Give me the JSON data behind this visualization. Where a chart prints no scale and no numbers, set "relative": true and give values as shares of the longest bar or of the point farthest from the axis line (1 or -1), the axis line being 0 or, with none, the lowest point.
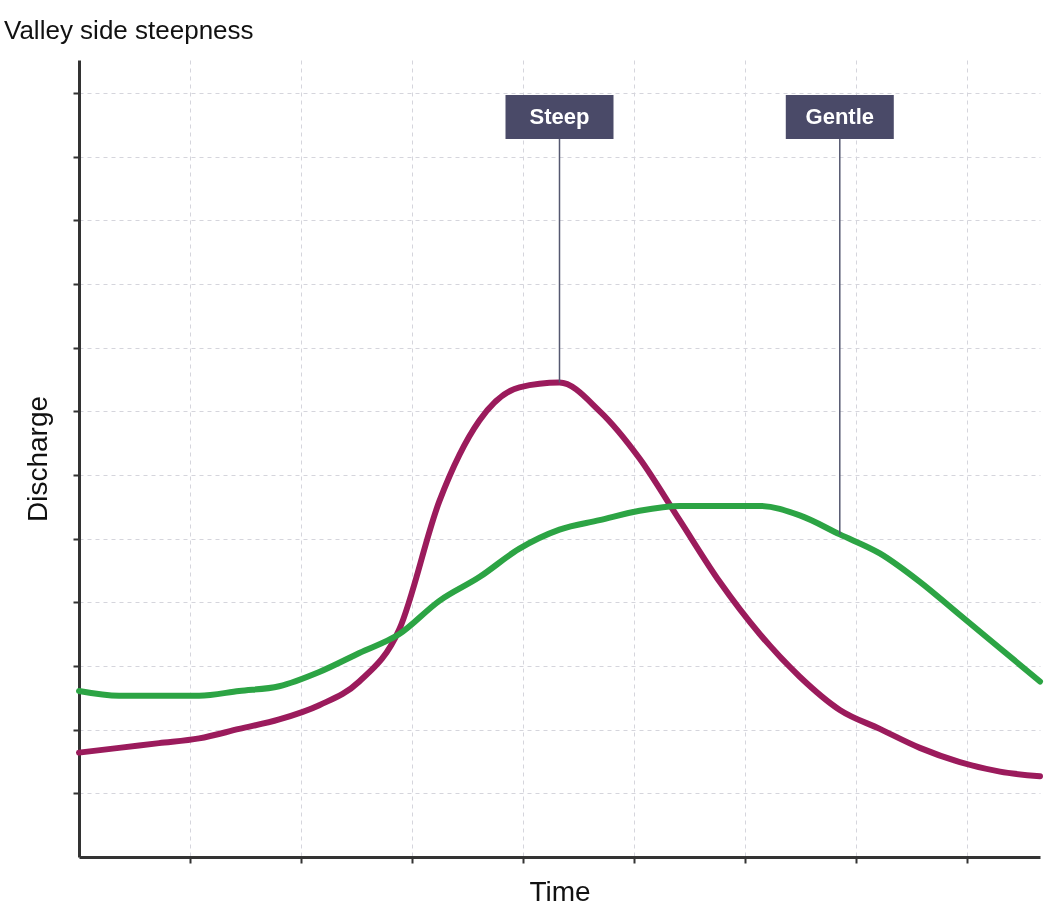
{
  "chart_data": {
    "type": "line",
    "relative": true,
    "title": "Valley side steepness",
    "xlabel": "Time",
    "ylabel": "Discharge",
    "grid": true,
    "legend": false,
    "categories": [
      null,
      null,
      null,
      null,
      null,
      null,
      null,
      null,
      null,
      null,
      null,
      null,
      null,
      null,
      null,
      null,
      null,
      null,
      null,
      null,
      null,
      null,
      null,
      null,
      null
    ],
    "series": [
      {
        "name": "Steep",
        "color": "#9b1b5c",
        "values": [
          0.22,
          0.23,
          0.24,
          0.25,
          0.27,
          0.29,
          0.32,
          0.37,
          0.48,
          0.75,
          0.92,
          0.99,
          1,
          0.94,
          0.84,
          0.71,
          0.58,
          0.47,
          0.38,
          0.31,
          0.27,
          0.23,
          0.2,
          0.18,
          0.17
        ]
      },
      {
        "name": "Gentle",
        "color": "#2ca444",
        "values": [
          0.35,
          0.34,
          0.34,
          0.34,
          0.35,
          0.36,
          0.39,
          0.43,
          0.47,
          0.54,
          0.59,
          0.65,
          0.69,
          0.71,
          0.73,
          0.74,
          0.74,
          0.74,
          0.72,
          0.68,
          0.64,
          0.58,
          0.51,
          0.44,
          0.37
        ]
      }
    ]
  }
}
